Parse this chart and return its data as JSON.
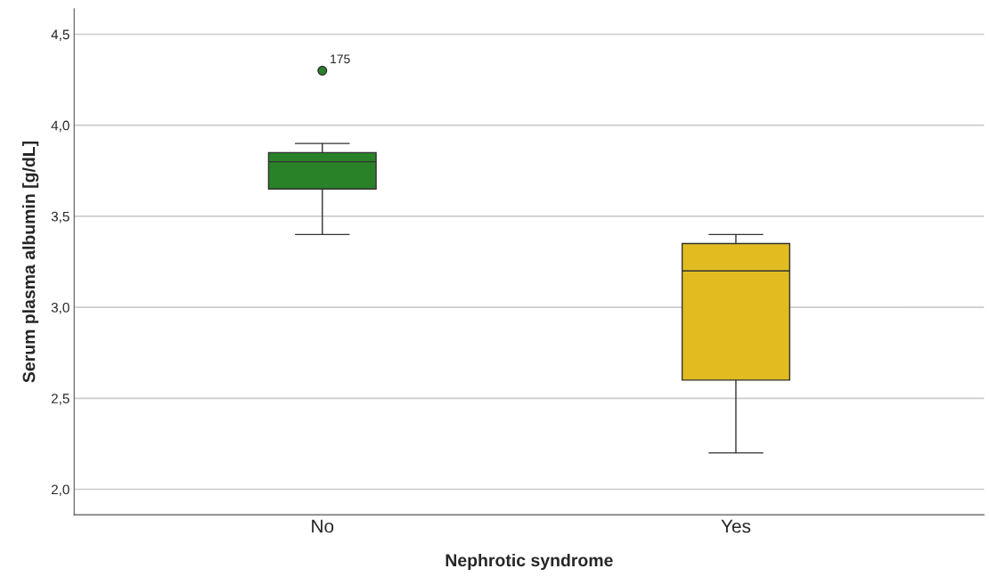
{
  "chart_data": {
    "type": "box",
    "xlabel": "Nephrotic syndrome",
    "ylabel": "Serum plasma albumin [g/dL]",
    "categories": [
      "No",
      "Yes"
    ],
    "colors": [
      "#2a8228",
      "#e0bc20"
    ],
    "boxes": [
      {
        "low": 3.4,
        "q1": 3.65,
        "median": 3.8,
        "q3": 3.85,
        "high": 3.9,
        "outliers": [
          4.3
        ]
      },
      {
        "low": 2.2,
        "q1": 2.6,
        "median": 3.2,
        "q3": 3.35,
        "high": 3.4
      }
    ],
    "ylim": [
      1.86,
      4.64
    ],
    "yticks": [
      {
        "value": 2.0,
        "label": "2,0"
      },
      {
        "value": 2.5,
        "label": "2,5"
      },
      {
        "value": 3.0,
        "label": "3,0"
      },
      {
        "value": 3.5,
        "label": "3,5"
      },
      {
        "value": 4.0,
        "label": "4,0"
      },
      {
        "value": 4.5,
        "label": "4,5"
      }
    ],
    "grid": "y",
    "annotations": [
      "175"
    ]
  }
}
